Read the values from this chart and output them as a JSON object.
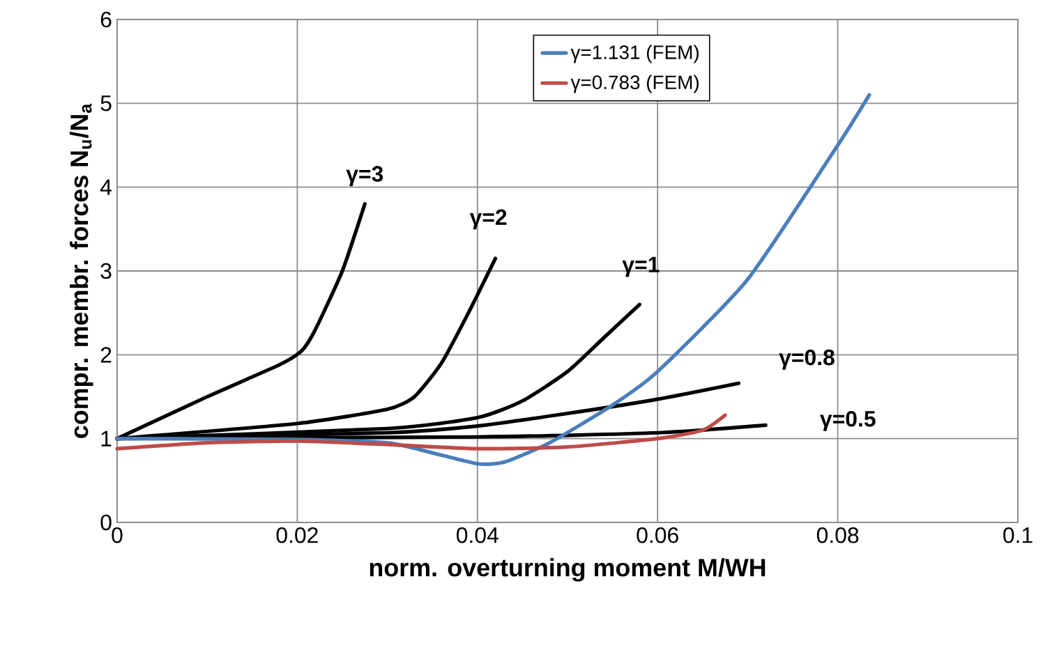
{
  "chart_data": {
    "type": "line",
    "xlabel": "norm. overturning moment M/WH",
    "ylabel": "compr. membr. forces N$_{u}$/N$_{a}$",
    "xlim": [
      0,
      0.1
    ],
    "ylim": [
      0,
      6
    ],
    "xticks": [
      0,
      0.02,
      0.04,
      0.06,
      0.08,
      0.1
    ],
    "yticks": [
      0,
      1,
      2,
      3,
      4,
      5,
      6
    ],
    "grid": true,
    "legend": "top",
    "marker": "none",
    "line_style": "solid",
    "series": [
      {
        "name": "γ=3",
        "color": "#000000",
        "x": [
          0,
          0.01,
          0.018,
          0.0205,
          0.022,
          0.025,
          0.0275
        ],
        "values": [
          1,
          1.5,
          1.88,
          2.05,
          2.3,
          3.0,
          3.8
        ]
      },
      {
        "name": "γ=2",
        "color": "#000000",
        "x": [
          0,
          0.02,
          0.03,
          0.033,
          0.036,
          0.039,
          0.042
        ],
        "values": [
          1,
          1.18,
          1.35,
          1.5,
          1.9,
          2.5,
          3.15
        ]
      },
      {
        "name": "γ=1",
        "color": "#000000",
        "x": [
          0,
          0.03,
          0.04,
          0.045,
          0.05,
          0.054,
          0.058
        ],
        "values": [
          1,
          1.12,
          1.25,
          1.45,
          1.8,
          2.2,
          2.6
        ]
      },
      {
        "name": "γ=0.8",
        "color": "#000000",
        "x": [
          0,
          0.03,
          0.04,
          0.05,
          0.06,
          0.069
        ],
        "values": [
          1,
          1.07,
          1.15,
          1.3,
          1.47,
          1.66
        ]
      },
      {
        "name": "γ=0.5",
        "color": "#000000",
        "x": [
          0,
          0.04,
          0.06,
          0.072
        ],
        "values": [
          1,
          1.02,
          1.07,
          1.16
        ]
      },
      {
        "name": "γ=1.131 (FEM)",
        "color": "#4a7ebb",
        "x": [
          0,
          0.02,
          0.03,
          0.035,
          0.04,
          0.043,
          0.048,
          0.055,
          0.06,
          0.07,
          0.08,
          0.0835
        ],
        "values": [
          1,
          0.99,
          0.95,
          0.83,
          0.7,
          0.72,
          0.95,
          1.4,
          1.8,
          2.9,
          4.5,
          5.1
        ]
      },
      {
        "name": "γ=0.783 (FEM)",
        "color": "#be4b48",
        "x": [
          0,
          0.01,
          0.02,
          0.03,
          0.04,
          0.05,
          0.06,
          0.065,
          0.0675
        ],
        "values": [
          0.88,
          0.95,
          0.97,
          0.93,
          0.88,
          0.9,
          1.0,
          1.1,
          1.28
        ]
      }
    ]
  }
}
